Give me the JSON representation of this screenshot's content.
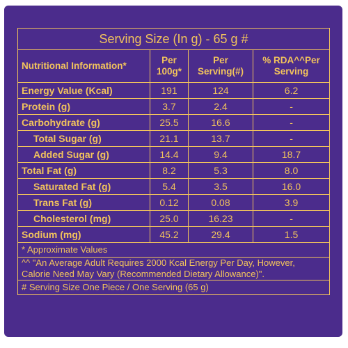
{
  "table": {
    "title": "Serving Size (In g) - 65 g #",
    "headers": [
      "Nutritional Information*",
      "Per 100g*",
      "Per Serving(#)",
      "% RDA^^Per Serving"
    ],
    "rows": [
      [
        "Energy Value (Kcal)",
        "191",
        "124",
        "6.2"
      ],
      [
        "Protein (g)",
        "3.7",
        "2.4",
        "-"
      ],
      [
        "Carbohydrate (g)",
        "25.5",
        "16.6",
        "-"
      ],
      [
        "Total Sugar (g)",
        "21.1",
        "13.7",
        "-"
      ],
      [
        "Added Sugar (g)",
        "14.4",
        "9.4",
        "18.7"
      ],
      [
        "Total Fat (g)",
        "8.2",
        "5.3",
        "8.0"
      ],
      [
        "Saturated Fat (g)",
        "5.4",
        "3.5",
        "16.0"
      ],
      [
        "Trans Fat (g)",
        "0.12",
        "0.08",
        "3.9"
      ],
      [
        "Cholesterol (mg)",
        "25.0",
        "16.23",
        "-"
      ],
      [
        "Sodium (mg)",
        "45.2",
        "29.4",
        "1.5"
      ]
    ],
    "footnotes": [
      "* Approximate Values",
      "^^ \"An Average Adult Requires 2000 Kcal Energy Per Day, However, Calorie Need May Vary (Recommended Dietary Allowance)\".",
      "# Serving Size One Piece / One Serving (65 g)"
    ]
  }
}
